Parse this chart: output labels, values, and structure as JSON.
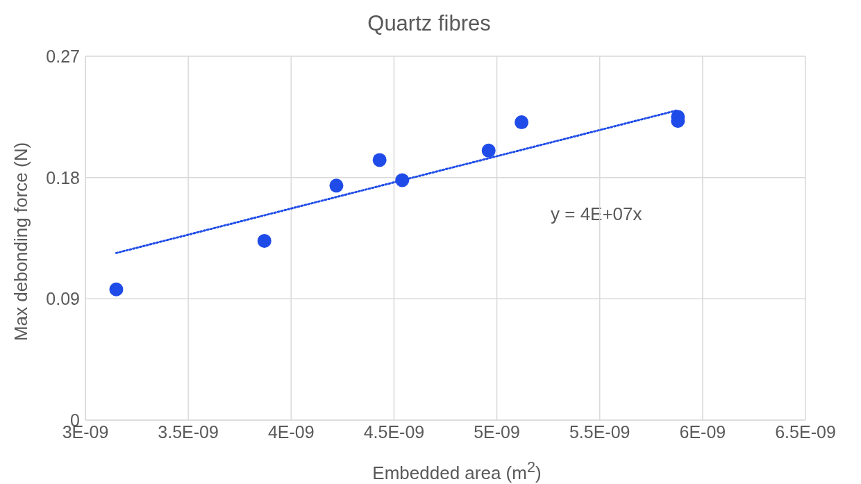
{
  "chart_data": {
    "type": "scatter",
    "title": "Quartz fibres",
    "xlabel": "Embedded area (m$^{2}$)",
    "ylabel": "Max debonding force (N)",
    "xlim": [
      3e-09,
      6.5e-09
    ],
    "xticks": [
      {
        "value": 3e-09,
        "label": "3E-09"
      },
      {
        "value": 3.5e-09,
        "label": "3.5E-09"
      },
      {
        "value": 4e-09,
        "label": "4E-09"
      },
      {
        "value": 4.5e-09,
        "label": "4.5E-09"
      },
      {
        "value": 5e-09,
        "label": "5E-09"
      },
      {
        "value": 5.5e-09,
        "label": "5.5E-09"
      },
      {
        "value": 6e-09,
        "label": "6E-09"
      },
      {
        "value": 6.5e-09,
        "label": "6.5E-09"
      }
    ],
    "ylim": [
      0,
      0.27
    ],
    "yticks": [
      0,
      0.09,
      0.18,
      0.27
    ],
    "grid": true,
    "series": [
      {
        "marker": "circle",
        "color": "#1f4ce8",
        "x": [
          3.15e-09,
          3.87e-09,
          4.22e-09,
          4.43e-09,
          4.54e-09,
          4.96e-09,
          5.12e-09,
          5.88e-09,
          5.88e-09
        ],
        "values": [
          0.097,
          0.133,
          0.174,
          0.193,
          0.178,
          0.2,
          0.221,
          0.225,
          0.222
        ]
      },
      {
        "type": "line",
        "color": "#1f4ce8",
        "line_style": "dotted",
        "x": [
          3.15e-09,
          5.88e-09
        ],
        "values": [
          0.124,
          0.23
        ]
      }
    ],
    "annotations": [
      "y = 4E+07x"
    ]
  }
}
